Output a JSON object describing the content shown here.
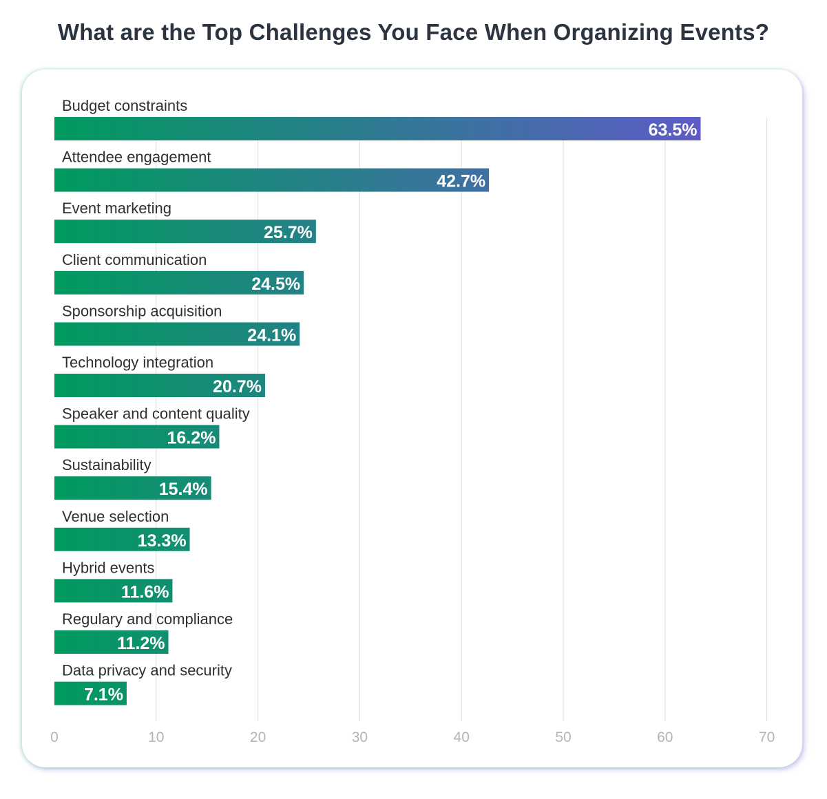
{
  "title": "What are the Top Challenges You Face When Organizing Events?",
  "chart_data": {
    "type": "bar",
    "orientation": "horizontal",
    "title": "What are the Top Challenges You Face When Organizing Events?",
    "xlabel": "",
    "ylabel": "",
    "categories": [
      "Budget constraints",
      "Attendee engagement",
      "Event marketing",
      "Client communication",
      "Sponsorship acquisition",
      "Technology integration",
      "Speaker and content quality",
      "Sustainability",
      "Venue selection",
      "Hybrid events",
      "Regulary and compliance",
      "Data privacy and security"
    ],
    "values": [
      63.5,
      42.7,
      25.7,
      24.5,
      24.1,
      20.7,
      16.2,
      15.4,
      13.3,
      11.6,
      11.2,
      7.1
    ],
    "value_labels": [
      "63.5%",
      "42.7%",
      "25.7%",
      "24.5%",
      "24.1%",
      "20.7%",
      "16.2%",
      "15.4%",
      "13.3%",
      "11.6%",
      "11.2%",
      "7.1%"
    ],
    "xlim": [
      0,
      70
    ],
    "xticks": [
      0,
      10,
      20,
      30,
      40,
      50,
      60,
      70
    ],
    "grid": true,
    "colors": {
      "start": "#009a5e",
      "end": "#5e5bc6",
      "grid": "#dcdcdc",
      "tick": "#b4b4b4",
      "label": "#2f2f2f",
      "value": "#ffffff"
    }
  }
}
